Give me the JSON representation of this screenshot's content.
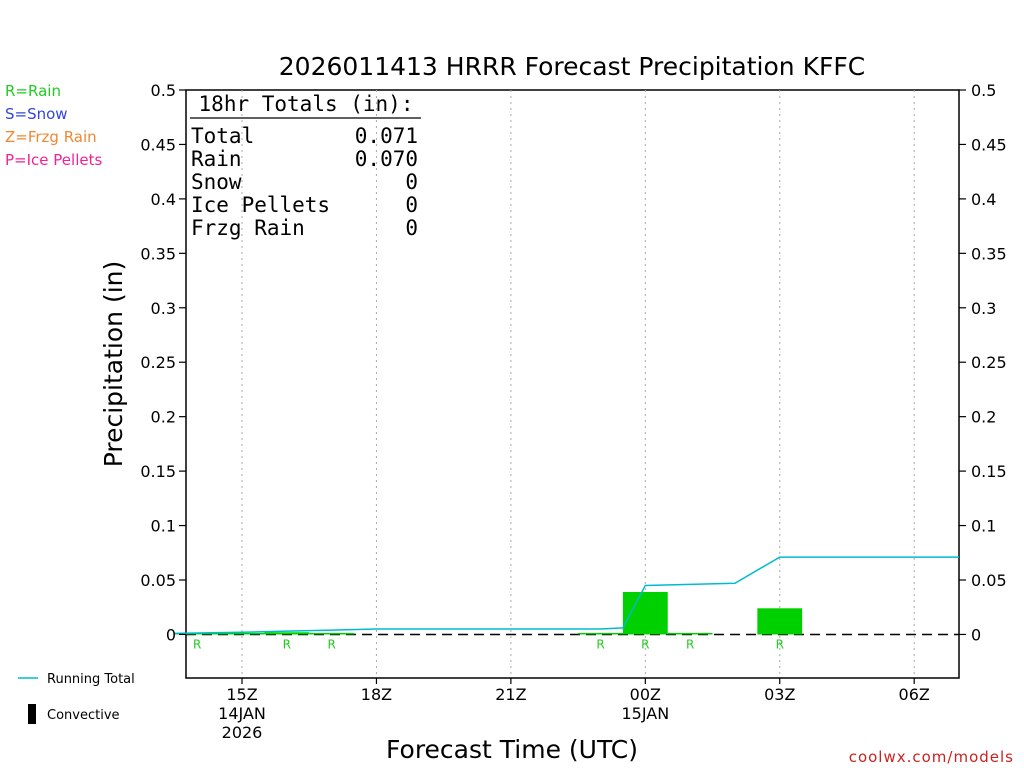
{
  "chart_data": {
    "type": "bar",
    "title": "2026011413 HRRR Forecast Precipitation KFFC",
    "xlabel": "Forecast Time (UTC)",
    "ylabel": "Precipitation (in)",
    "ylim": [
      -0.04,
      0.5
    ],
    "xlim": [
      13.75,
      31.0
    ],
    "yticks": [
      0,
      0.05,
      0.1,
      0.15,
      0.2,
      0.25,
      0.3,
      0.35,
      0.4,
      0.45,
      0.5
    ],
    "ytick_labels": [
      "0",
      "0.05",
      "0.1",
      "0.15",
      "0.2",
      "0.25",
      "0.3",
      "0.35",
      "0.4",
      "0.45",
      "0.5"
    ],
    "xticks": [
      {
        "x": 15,
        "line1": "15Z",
        "line2": "14JAN",
        "line3": "2026"
      },
      {
        "x": 18,
        "line1": "18Z",
        "line2": "",
        "line3": ""
      },
      {
        "x": 21,
        "line1": "21Z",
        "line2": "",
        "line3": ""
      },
      {
        "x": 24,
        "line1": "00Z",
        "line2": "15JAN",
        "line3": ""
      },
      {
        "x": 27,
        "line1": "03Z",
        "line2": "",
        "line3": ""
      },
      {
        "x": 30,
        "line1": "06Z",
        "line2": "",
        "line3": ""
      }
    ],
    "grid": true,
    "hourly_precip": {
      "x": [
        14,
        15,
        16,
        17,
        18,
        19,
        20,
        21,
        22,
        23,
        24,
        25,
        26,
        27,
        28,
        29,
        30,
        31
      ],
      "values": [
        0.001,
        0.0005,
        0.002,
        0.0005,
        0.0,
        0.0,
        0.0,
        0.0,
        0.0,
        0.0005,
        0.039,
        0.001,
        0.0,
        0.024,
        0.0,
        0.0,
        0.0,
        0.0
      ],
      "type_marks": [
        "R",
        "",
        "R",
        "R",
        "",
        "",
        "",
        "",
        "",
        "R",
        "R",
        "R",
        "",
        "R",
        "",
        "",
        "",
        ""
      ]
    },
    "series": [
      {
        "name": "Running Total",
        "x": [
          13.5,
          15,
          16,
          17,
          18,
          19,
          20,
          21,
          22,
          23,
          23.5,
          24,
          25,
          26,
          27,
          28,
          29,
          30,
          31
        ],
        "values": [
          0.001,
          0.002,
          0.003,
          0.004,
          0.005,
          0.005,
          0.005,
          0.005,
          0.005,
          0.005,
          0.006,
          0.045,
          0.046,
          0.047,
          0.071,
          0.071,
          0.071,
          0.071,
          0.071
        ]
      }
    ],
    "totals_box": {
      "heading": "18hr Totals (in):",
      "rows": [
        {
          "label": "Total",
          "value": "0.071"
        },
        {
          "label": "Rain",
          "value": "0.070"
        },
        {
          "label": "Snow",
          "value": "0"
        },
        {
          "label": "Ice Pellets",
          "value": "0"
        },
        {
          "label": "Frzg Rain",
          "value": "0"
        }
      ]
    },
    "precip_type_legend": [
      {
        "text": "R=Rain",
        "color": "#22cc22"
      },
      {
        "text": "S=Snow",
        "color": "#3344dd"
      },
      {
        "text": "Z=Frzg Rain",
        "color": "#ee8833"
      },
      {
        "text": "P=Ice Pellets",
        "color": "#ee2299"
      }
    ],
    "bottom_legend": [
      {
        "text": "Running Total",
        "color": "#00bbcc",
        "kind": "line"
      },
      {
        "text": "Convective",
        "color": "#000000",
        "kind": "bar"
      }
    ],
    "colors": {
      "rain_bar": "#00d000",
      "running_total": "#00bbcc",
      "grid": "#aaaaaa",
      "rain_mark": "#22cc22",
      "source": "#cc2222"
    },
    "source": "coolwx.com/models"
  }
}
